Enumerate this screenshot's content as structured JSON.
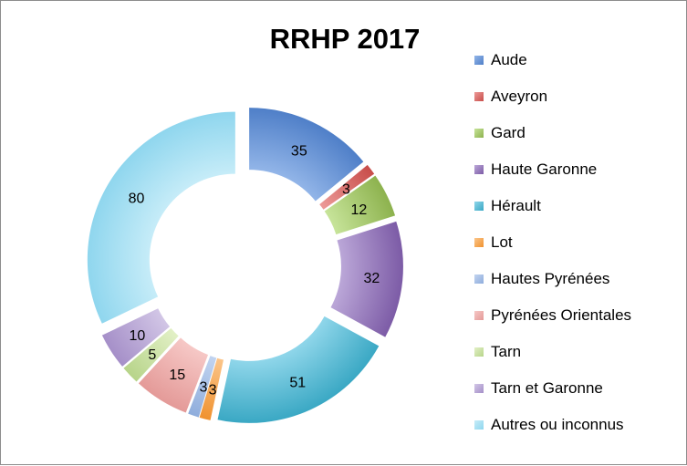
{
  "chart_data": {
    "type": "donut",
    "title": "RRHP 2017",
    "categories": [
      "Aude",
      "Aveyron",
      "Gard",
      "Haute Garonne",
      "Hérault",
      "Lot",
      "Hautes Pyrénées",
      "Pyrénées Orientales",
      "Tarn",
      "Tarn et Garonne",
      "Autres ou inconnus"
    ],
    "values": [
      35,
      3,
      12,
      32,
      51,
      3,
      3,
      15,
      5,
      10,
      80
    ],
    "colors": [
      [
        "#4f7fc8",
        "#92b5e8"
      ],
      [
        "#c84d4a",
        "#ec9a98"
      ],
      [
        "#8db24e",
        "#c7e49a"
      ],
      [
        "#7c5ba6",
        "#bba7d8"
      ],
      [
        "#3aa8c4",
        "#8fd6ea"
      ],
      [
        "#f0922f",
        "#fbc58a"
      ],
      [
        "#8faddc",
        "#c2d4f0"
      ],
      [
        "#e49a98",
        "#f6c8c6"
      ],
      [
        "#b7d48a",
        "#e2f0c6"
      ],
      [
        "#a58fc8",
        "#d2c6e6"
      ],
      [
        "#8fd6ee",
        "#c6ecf8"
      ]
    ],
    "legend_position": "right",
    "exploded": true
  }
}
